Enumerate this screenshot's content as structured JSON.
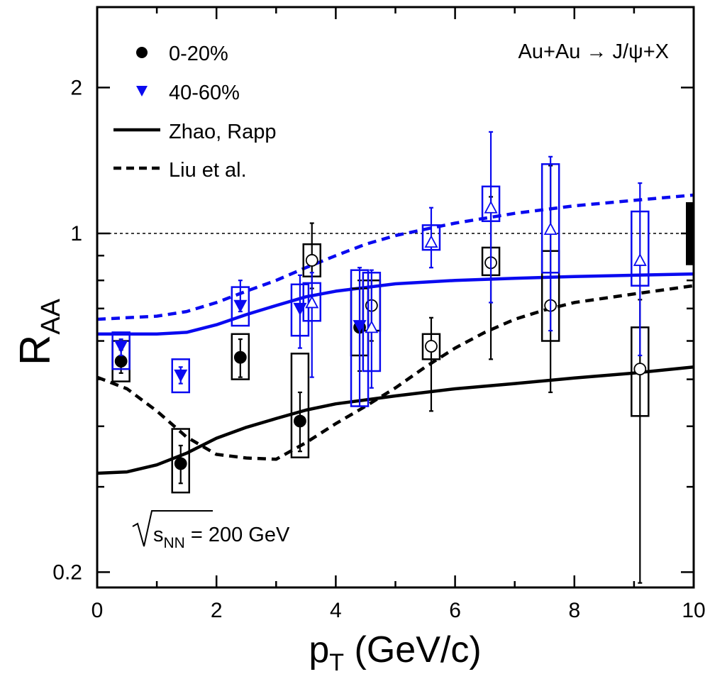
{
  "chart_data": {
    "type": "scatter",
    "title": "Au+Au → J/ψ+X",
    "annotation": {
      "prefix": "s",
      "subscript": "NN",
      "suffix": "= 200 GeV"
    },
    "xlabel": {
      "main": "p",
      "sub": "T",
      "rest": " (GeV/c)"
    },
    "ylabel": {
      "main": "R",
      "sub": "AA"
    },
    "xlim": [
      0,
      10
    ],
    "ylim": [
      0.18,
      3.0
    ],
    "yscale": "log",
    "xticks": [
      0,
      2,
      4,
      6,
      8,
      10
    ],
    "xtick_labels": [
      "0",
      "2",
      "4",
      "6",
      "8",
      "10"
    ],
    "yticks_labeled": [
      0.2,
      1,
      2
    ],
    "ytick_labels": [
      "0.2",
      "1",
      "2"
    ],
    "yticks_minor": [
      0.3,
      0.4,
      0.5,
      0.6,
      0.7,
      0.8,
      0.9
    ],
    "xticks_minor": [
      1,
      3,
      5,
      7,
      9
    ],
    "reference_line": 1,
    "global_uncertainty": [
      0.86,
      1.16
    ],
    "colors": {
      "central": "#000000",
      "peripheral": "#0a0af0"
    },
    "legend": {
      "placement": "top-left",
      "entries": [
        {
          "label": "0-20%",
          "marker": "circle",
          "color": "#000000"
        },
        {
          "label": "40-60%",
          "marker": "triangle-down",
          "color": "#0a0af0"
        },
        {
          "label": "Zhao, Rapp",
          "style": "solid",
          "color": "#000000"
        },
        {
          "label": "Liu et al.",
          "style": "dashed",
          "color": "#000000"
        }
      ]
    },
    "series": [
      {
        "name": "0-20%",
        "color": "#000000",
        "points": [
          {
            "x": 0.4,
            "y": 0.545,
            "stat": [
              0.515,
              0.575
            ],
            "sys": [
              0.495,
              0.6
            ],
            "open": false
          },
          {
            "x": 1.4,
            "y": 0.335,
            "stat": [
              0.305,
              0.365
            ],
            "sys": [
              0.292,
              0.395
            ],
            "open": false
          },
          {
            "x": 2.4,
            "y": 0.555,
            "stat": [
              0.505,
              0.605
            ],
            "sys": [
              0.5,
              0.62
            ],
            "open": false
          },
          {
            "x": 3.4,
            "y": 0.41,
            "stat": [
              0.355,
              0.47
            ],
            "sys": [
              0.345,
              0.565
            ],
            "open": false
          },
          {
            "x": 3.6,
            "y": 0.88,
            "stat": [
              0.77,
              1.05
            ],
            "sys": [
              0.815,
              0.95
            ],
            "open": true
          },
          {
            "x": 4.4,
            "y": 0.64,
            "stat": [
              0.52,
              0.8
            ],
            "sys": [
              0.56,
              0.77
            ],
            "open": false
          },
          {
            "x": 4.6,
            "y": 0.71,
            "stat": [
              0.6,
              0.8
            ],
            "sys": [
              0.63,
              0.8
            ],
            "open": true
          },
          {
            "x": 5.6,
            "y": 0.585,
            "stat": [
              0.43,
              0.67
            ],
            "sys": [
              0.55,
              0.62
            ],
            "open": true
          },
          {
            "x": 6.6,
            "y": 0.87,
            "stat": [
              0.55,
              1.19
            ],
            "sys": [
              0.82,
              0.935
            ],
            "open": true
          },
          {
            "x": 7.6,
            "y": 0.71,
            "stat": [
              0.47,
              1.38
            ],
            "sys": [
              0.6,
              0.92
            ],
            "open": true
          },
          {
            "x": 9.1,
            "y": 0.525,
            "stat": [
              0.19,
              0.73
            ],
            "sys": [
              0.42,
              0.64
            ],
            "open": true
          }
        ]
      },
      {
        "name": "40-60%",
        "color": "#0a0af0",
        "points": [
          {
            "x": 0.4,
            "y": 0.585,
            "stat": [
              0.56,
              0.605
            ],
            "sys": [
              0.525,
              0.625
            ],
            "open": false
          },
          {
            "x": 1.4,
            "y": 0.51,
            "stat": [
              0.49,
              0.53
            ],
            "sys": [
              0.47,
              0.55
            ],
            "open": false
          },
          {
            "x": 2.4,
            "y": 0.71,
            "stat": [
              0.69,
              0.8
            ],
            "sys": [
              0.645,
              0.775
            ],
            "open": false
          },
          {
            "x": 3.4,
            "y": 0.7,
            "stat": [
              0.58,
              0.82
            ],
            "sys": [
              0.615,
              0.785
            ],
            "open": false
          },
          {
            "x": 3.6,
            "y": 0.72,
            "stat": [
              0.505,
              0.83
            ],
            "sys": [
              0.66,
              0.79
            ],
            "open": true
          },
          {
            "x": 4.4,
            "y": 0.645,
            "stat": [
              0.44,
              0.85
            ],
            "sys": [
              0.44,
              0.84
            ],
            "open": false
          },
          {
            "x": 4.6,
            "y": 0.64,
            "stat": [
              0.48,
              0.84
            ],
            "sys": [
              0.52,
              0.83
            ],
            "open": true
          },
          {
            "x": 5.6,
            "y": 0.96,
            "stat": [
              0.85,
              1.13
            ],
            "sys": [
              0.925,
              1.04
            ],
            "open": true
          },
          {
            "x": 6.6,
            "y": 1.13,
            "stat": [
              0.72,
              1.62
            ],
            "sys": [
              1.06,
              1.25
            ],
            "open": true
          },
          {
            "x": 7.6,
            "y": 1.02,
            "stat": [
              0.63,
              1.44
            ],
            "sys": [
              0.83,
              1.39
            ],
            "open": true
          },
          {
            "x": 9.1,
            "y": 0.88,
            "stat": [
              0.56,
              1.27
            ],
            "sys": [
              0.78,
              1.11
            ],
            "open": true
          }
        ]
      }
    ],
    "model_curves": [
      {
        "name": "Zhao, Rapp",
        "centrality": "0-20%",
        "style": "solid",
        "color": "#000000",
        "x": [
          0,
          0.5,
          1,
          1.5,
          2,
          2.5,
          3,
          3.5,
          4,
          5,
          6,
          7,
          8,
          9,
          10
        ],
        "y": [
          0.32,
          0.322,
          0.333,
          0.352,
          0.378,
          0.398,
          0.415,
          0.432,
          0.445,
          0.462,
          0.478,
          0.49,
          0.503,
          0.515,
          0.53
        ]
      },
      {
        "name": "Zhao, Rapp",
        "centrality": "40-60%",
        "style": "solid",
        "color": "#0a0af0",
        "x": [
          0,
          0.5,
          1,
          1.5,
          2,
          2.5,
          3,
          3.5,
          4,
          5,
          6,
          7,
          8,
          9,
          10
        ],
        "y": [
          0.62,
          0.62,
          0.62,
          0.625,
          0.648,
          0.68,
          0.71,
          0.74,
          0.76,
          0.787,
          0.8,
          0.808,
          0.815,
          0.82,
          0.825
        ]
      },
      {
        "name": "Liu et al.",
        "centrality": "0-20%",
        "style": "dashed",
        "color": "#000000",
        "x": [
          0,
          0.5,
          1,
          1.5,
          2,
          2.5,
          3,
          3.5,
          4,
          4.5,
          5,
          5.5,
          6,
          6.5,
          7,
          7.5,
          8,
          9,
          10
        ],
        "y": [
          0.505,
          0.478,
          0.43,
          0.38,
          0.35,
          0.344,
          0.342,
          0.37,
          0.405,
          0.44,
          0.48,
          0.53,
          0.58,
          0.625,
          0.665,
          0.695,
          0.72,
          0.75,
          0.78
        ]
      },
      {
        "name": "Liu et al.",
        "centrality": "40-60%",
        "style": "dashed",
        "color": "#0a0af0",
        "x": [
          0,
          0.5,
          1,
          1.5,
          2,
          2.5,
          3,
          3.5,
          4,
          4.5,
          5,
          5.5,
          6,
          7,
          8,
          9,
          10
        ],
        "y": [
          0.665,
          0.67,
          0.675,
          0.69,
          0.72,
          0.76,
          0.8,
          0.85,
          0.9,
          0.95,
          0.99,
          1.02,
          1.05,
          1.1,
          1.14,
          1.17,
          1.2
        ]
      }
    ]
  }
}
